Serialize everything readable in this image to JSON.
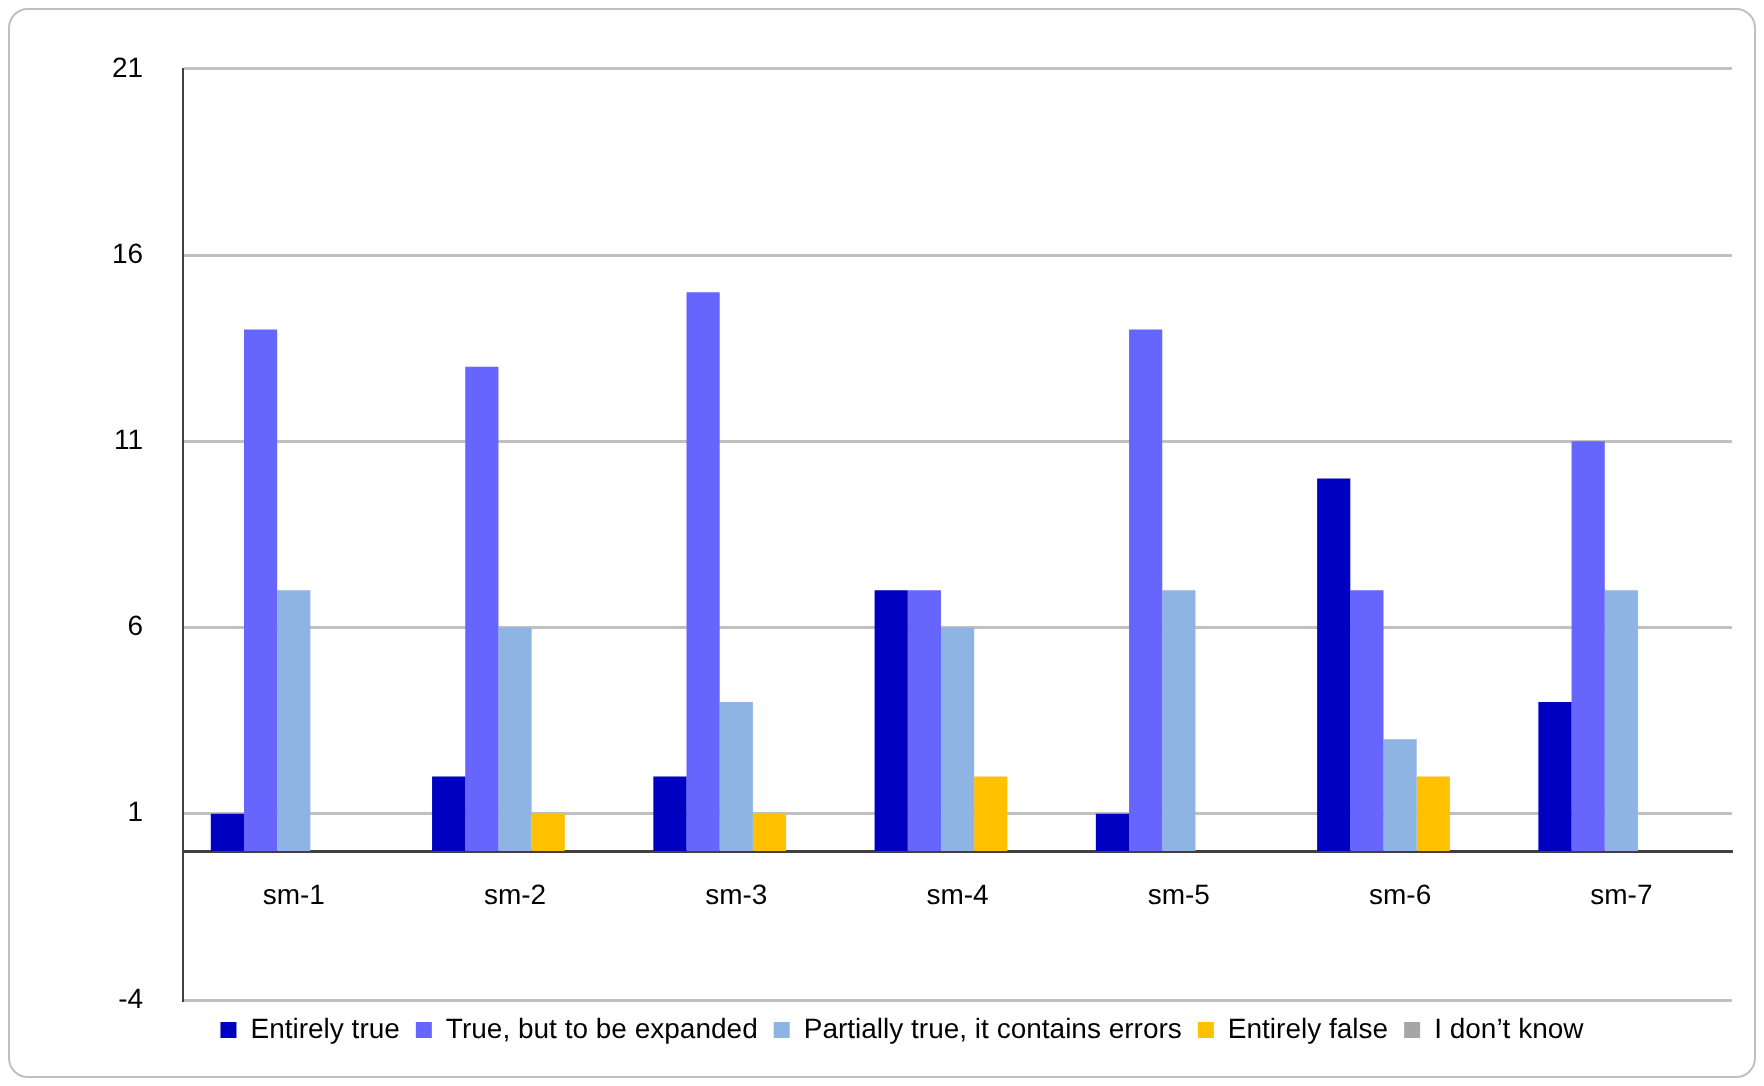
{
  "chart_data": {
    "type": "bar",
    "categories": [
      "sm-1",
      "sm-2",
      "sm-3",
      "sm-4",
      "sm-5",
      "sm-6",
      "sm-7"
    ],
    "series": [
      {
        "name": "Entirely true",
        "color": "#0000c0",
        "values": [
          1,
          2,
          2,
          7,
          1,
          10,
          4
        ]
      },
      {
        "name": "True, but to be expanded",
        "color": "#6666ff",
        "values": [
          14,
          13,
          15,
          7,
          14,
          7,
          11
        ]
      },
      {
        "name": "Partially true, it contains errors",
        "color": "#8eb4e3",
        "values": [
          7,
          6,
          4,
          6,
          7,
          3,
          7
        ]
      },
      {
        "name": "Entirely false",
        "color": "#ffc000",
        "values": [
          0,
          1,
          1,
          2,
          0,
          2,
          0
        ]
      },
      {
        "name": "I don’t know",
        "color": "#a6a6a6",
        "values": [
          0,
          0,
          0,
          0,
          0,
          0,
          0
        ]
      }
    ],
    "ylim": [
      -4,
      21
    ],
    "yticks": [
      -4,
      1,
      6,
      11,
      16,
      21
    ],
    "grid": "y",
    "legend": "bottom"
  }
}
